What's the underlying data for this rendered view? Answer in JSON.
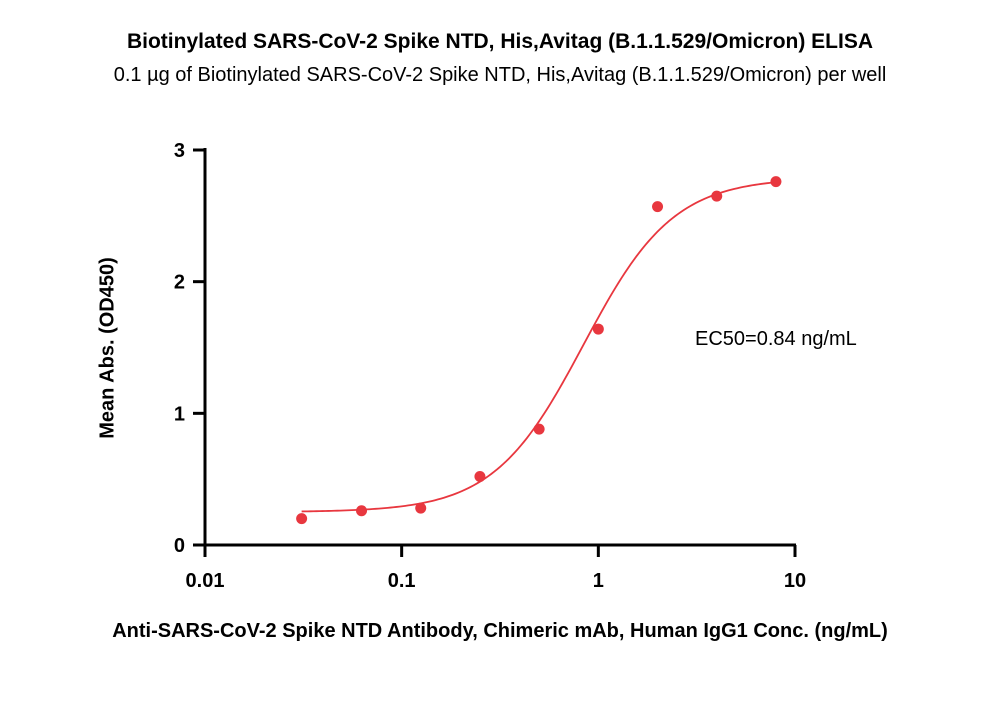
{
  "chart_data": {
    "type": "scatter",
    "title": "Biotinylated SARS-CoV-2 Spike NTD, His,Avitag (B.1.1.529/Omicron) ELISA",
    "subtitle": "0.1 µg of Biotinylated SARS-CoV-2 Spike NTD, His,Avitag (B.1.1.529/Omicron) per well",
    "xlabel": "Anti-SARS-CoV-2 Spike NTD Antibody, Chimeric mAb, Human IgG1 Conc. (ng/mL)",
    "ylabel": "Mean Abs. (OD450)",
    "x_scale": "log",
    "xlim": [
      0.01,
      10
    ],
    "ylim": [
      0,
      3
    ],
    "x_ticks": [
      "0.01",
      "0.1",
      "1",
      "10"
    ],
    "y_ticks": [
      "0",
      "1",
      "2",
      "3"
    ],
    "annotation": "EC50=0.84 ng/mL",
    "series": [
      {
        "points": [
          {
            "x": 0.031,
            "y": 0.2
          },
          {
            "x": 0.0625,
            "y": 0.26
          },
          {
            "x": 0.125,
            "y": 0.28
          },
          {
            "x": 0.25,
            "y": 0.52
          },
          {
            "x": 0.5,
            "y": 0.88
          },
          {
            "x": 1.0,
            "y": 1.64
          },
          {
            "x": 2.0,
            "y": 2.57
          },
          {
            "x": 4.0,
            "y": 2.65
          },
          {
            "x": 8.0,
            "y": 2.76
          }
        ],
        "fit": {
          "model": "4PL",
          "bottom": 0.25,
          "top": 2.79,
          "ec50": 0.84,
          "hill": 1.9
        }
      }
    ],
    "colors": {
      "series": "#e8373f",
      "axis": "#000000"
    },
    "grid": false
  }
}
